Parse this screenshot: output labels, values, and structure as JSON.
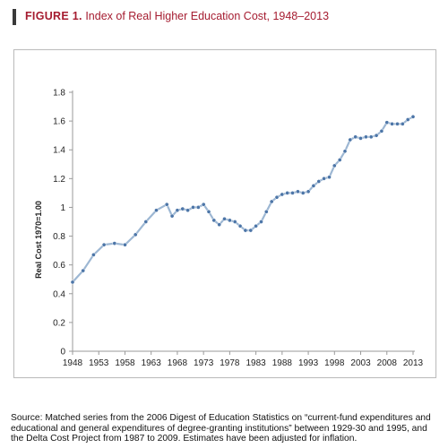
{
  "header": {
    "figure_label": "FIGURE 1.",
    "title": "Index of Real Higher Education Cost, 1948–2013"
  },
  "chart_data": {
    "type": "line",
    "title": "Index of Real Higher Education Cost, 1948–2013",
    "xlabel": "",
    "ylabel": "Real Cost 1970=1.00",
    "xlim": [
      1948,
      2013
    ],
    "ylim": [
      0,
      1.8
    ],
    "x_ticks": [
      "1948",
      "1953",
      "1958",
      "1963",
      "1968",
      "1973",
      "1978",
      "1983",
      "1988",
      "1993",
      "1998",
      "2003",
      "2008",
      "2013"
    ],
    "y_ticks": [
      "0",
      "0.2",
      "0.4",
      "0.6",
      "0.8",
      "1",
      "1.2",
      "1.4",
      "1.6",
      "1.8"
    ],
    "grid": false,
    "legend": "none",
    "series": [
      {
        "color": "#9db7d3",
        "marker_color": "#4d76a8",
        "x": [
          1948,
          1950,
          1952,
          1954,
          1956,
          1958,
          1960,
          1962,
          1964,
          1966,
          1967,
          1968,
          1969,
          1970,
          1971,
          1972,
          1973,
          1974,
          1975,
          1976,
          1977,
          1978,
          1979,
          1980,
          1981,
          1982,
          1983,
          1984,
          1985,
          1986,
          1987,
          1988,
          1989,
          1990,
          1991,
          1992,
          1993,
          1994,
          1995,
          1996,
          1997,
          1998,
          1999,
          2000,
          2001,
          2002,
          2003,
          2004,
          2005,
          2006,
          2007,
          2008,
          2009,
          2010,
          2011,
          2012,
          2013
        ],
        "values": [
          0.48,
          0.56,
          0.67,
          0.74,
          0.75,
          0.74,
          0.81,
          0.9,
          0.98,
          1.02,
          0.94,
          0.98,
          0.99,
          0.98,
          1.0,
          1.0,
          1.02,
          0.97,
          0.91,
          0.88,
          0.92,
          0.91,
          0.9,
          0.87,
          0.84,
          0.84,
          0.87,
          0.9,
          0.97,
          1.04,
          1.07,
          1.09,
          1.1,
          1.1,
          1.11,
          1.1,
          1.11,
          1.15,
          1.18,
          1.2,
          1.21,
          1.29,
          1.33,
          1.39,
          1.47,
          1.49,
          1.48,
          1.49,
          1.49,
          1.5,
          1.53,
          1.59,
          1.58,
          1.58,
          1.58,
          1.61,
          1.63
        ]
      }
    ]
  },
  "source": "Source: Matched series from the 2006 Digest of Education Statistics on “current-fund expenditures and educational and general expenditures of degree-granting institutions” between 1929-30 and 1995, and the Delta Cost Project from 1987 to 2009. Estimates have been adjusted for inflation."
}
